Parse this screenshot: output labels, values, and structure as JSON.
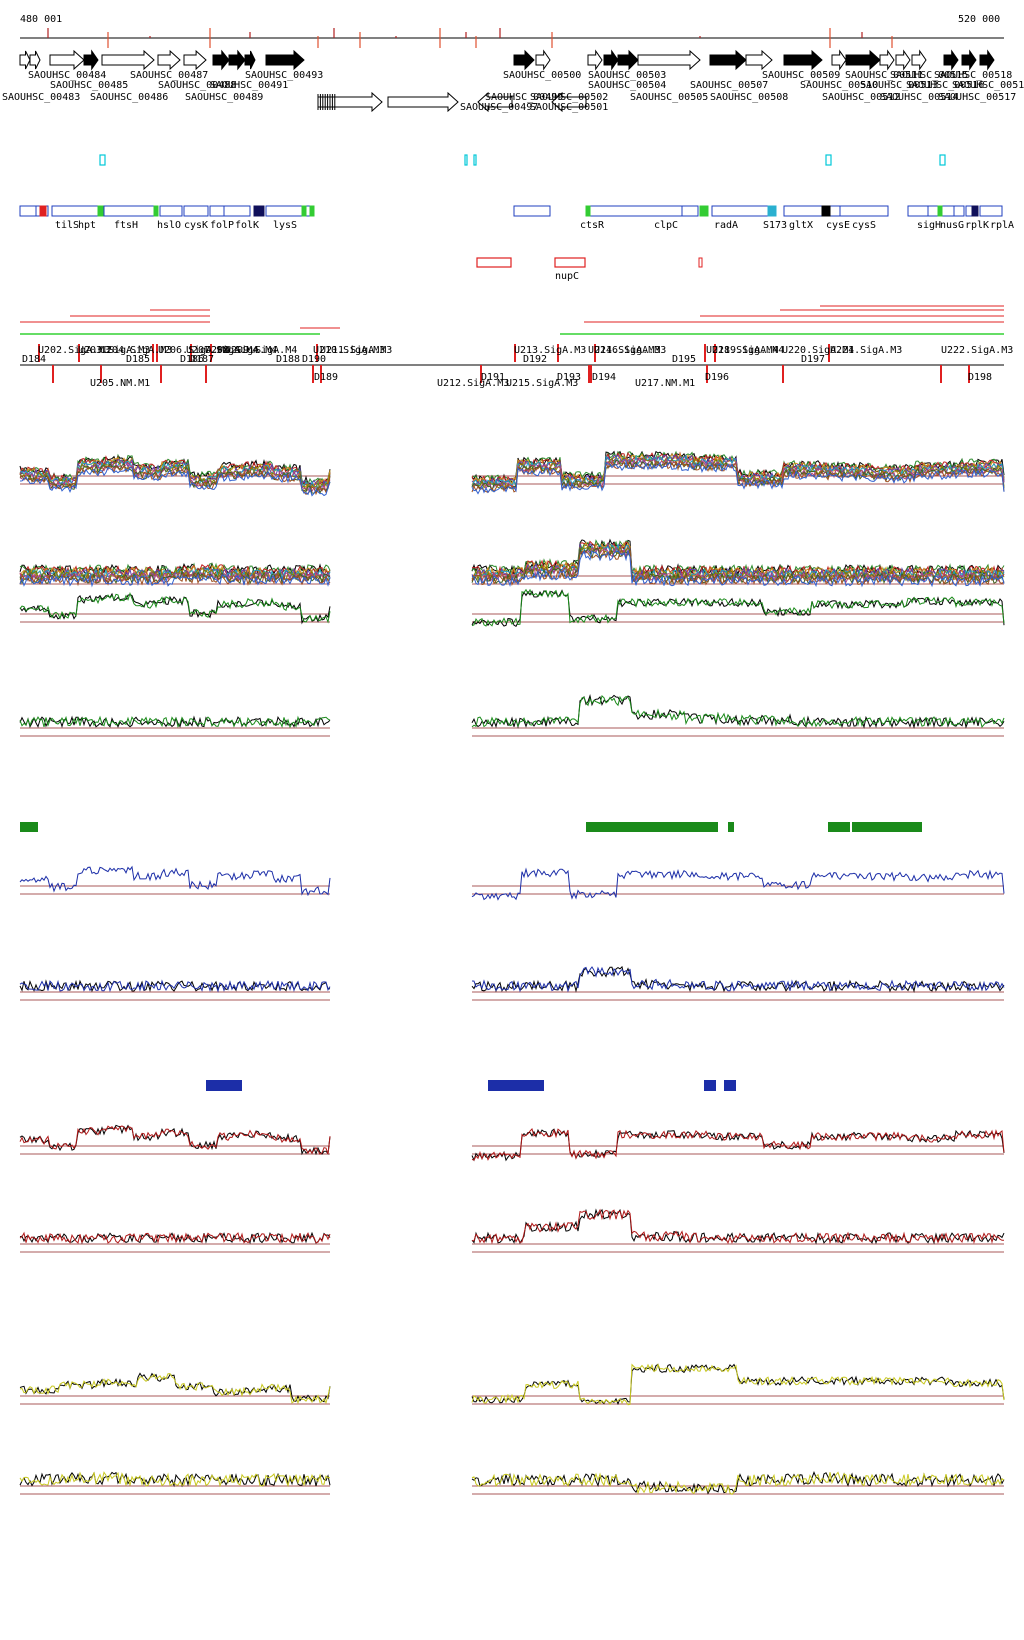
{
  "coords": {
    "start_label": "480 001",
    "end_label": "520 000"
  },
  "genes_top_row": [
    {
      "label": "SAOUHSC_00484"
    },
    {
      "label": "SAOUHSC_00487"
    },
    {
      "label": "SAOUHSC_00493"
    },
    {
      "label": "SAOUHSC_00500"
    },
    {
      "label": "SAOUHSC_00503"
    },
    {
      "label": "SAOUHSC_00509"
    },
    {
      "label": "SAOUHSC_00511"
    },
    {
      "label": "SAOUHSC_00515"
    },
    {
      "label": "SAOUHSC_00518"
    }
  ],
  "genes_mid_row": [
    {
      "label": "SAOUHSC_00485"
    },
    {
      "label": "SAOUHSC_00488"
    },
    {
      "label": "SAOUHSC_00491"
    },
    {
      "label": "SAOUHSC_00504"
    },
    {
      "label": "SAOUHSC_00507"
    },
    {
      "label": "SAOUHSC_00510"
    },
    {
      "label": "SAOUHSC_00513"
    },
    {
      "label": "SAOUHSC_00516"
    },
    {
      "label": "SAOUHSC_00519"
    }
  ],
  "genes_low_row": [
    {
      "label": "SAOUHSC_00483"
    },
    {
      "label": "SAOUHSC_00486"
    },
    {
      "label": "SAOUHSC_00489"
    },
    {
      "label": "SAOUHSC_00499"
    },
    {
      "label": "SAOUHSC_00497"
    },
    {
      "label": "SAOUHSC_00501"
    },
    {
      "label": "SAOUHSC_00502"
    },
    {
      "label": "SAOUHSC_00505"
    },
    {
      "label": "SAOUHSC_00508"
    },
    {
      "label": "SAOUHSC_00512"
    },
    {
      "label": "SAOUHSC_00514"
    },
    {
      "label": "SAOUHSC_00517"
    }
  ],
  "gene_names": [
    {
      "label": "tilS"
    },
    {
      "label": "hpt"
    },
    {
      "label": "ftsH"
    },
    {
      "label": "hslO"
    },
    {
      "label": "cysK"
    },
    {
      "label": "folP"
    },
    {
      "label": "folK"
    },
    {
      "label": "lysS"
    },
    {
      "label": "ctsR"
    },
    {
      "label": "clpC"
    },
    {
      "label": "radA"
    },
    {
      "label": "S173"
    },
    {
      "label": "gltX"
    },
    {
      "label": "cysE"
    },
    {
      "label": "cysS"
    },
    {
      "label": "sigH"
    },
    {
      "label": "nusG"
    },
    {
      "label": "rplK"
    },
    {
      "label": "rplA"
    }
  ],
  "other_feature": {
    "label": "nupC"
  },
  "upshift_labels": [
    {
      "label": "U202.SigA.M3"
    },
    {
      "label": "U203.SigA.M3"
    },
    {
      "label": "U204.SigA.M3"
    },
    {
      "label": "U206.SigA.M4"
    },
    {
      "label": "U207.SigA.M4"
    },
    {
      "label": "U208.SigA.M4"
    },
    {
      "label": "U209.SigA.M4"
    },
    {
      "label": "U210.SigA.M3"
    },
    {
      "label": "U211.SigA.M3"
    },
    {
      "label": "U213.SigA.M3"
    },
    {
      "label": "U214.SigA.M3"
    },
    {
      "label": "U216.SigA.M3"
    },
    {
      "label": "U218.SigA.M4"
    },
    {
      "label": "U219.SigA.M4"
    },
    {
      "label": "U220.SigA.M4"
    },
    {
      "label": "U221.SigA.M3"
    },
    {
      "label": "U222.SigA.M3"
    }
  ],
  "lower_upshift_labels": [
    {
      "label": "U205.NM.M1"
    },
    {
      "label": "U212.SigA.M3"
    },
    {
      "label": "U215.SigA.M3"
    },
    {
      "label": "U217.NM.M1"
    }
  ],
  "downshift_labels_upper": [
    {
      "label": "D184"
    },
    {
      "label": "D185"
    },
    {
      "label": "D186"
    },
    {
      "label": "D187"
    },
    {
      "label": "D188"
    },
    {
      "label": "D190"
    },
    {
      "label": "D192"
    },
    {
      "label": "D195"
    },
    {
      "label": "D197"
    }
  ],
  "downshift_labels_lower": [
    {
      "label": "D189"
    },
    {
      "label": "D191"
    },
    {
      "label": "D193"
    },
    {
      "label": "D194"
    },
    {
      "label": "D196"
    },
    {
      "label": "D198"
    }
  ],
  "colors": {
    "gene_black": "#000000",
    "ncrna_cyan": "#00c8d8",
    "operon_blue": "#1f3fbf",
    "feature_red": "#e02020",
    "green_track": "#1a8a1a",
    "blue_track": "#1c2ea8",
    "red_track": "#b01818",
    "yellow_track": "#c8c820",
    "threshold": "#8b2020"
  }
}
